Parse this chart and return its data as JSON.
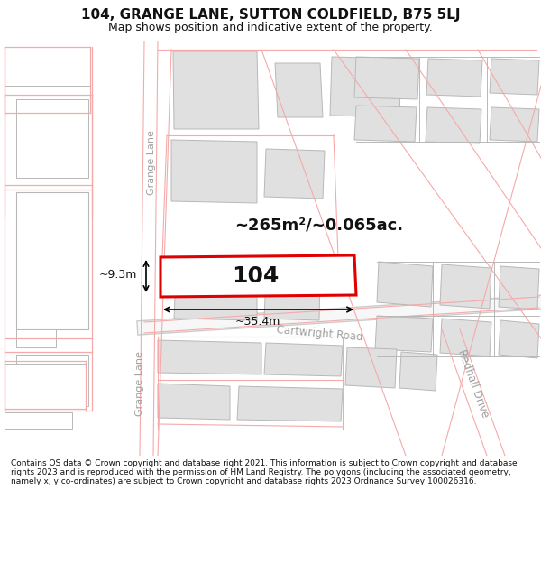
{
  "title_line1": "104, GRANGE LANE, SUTTON COLDFIELD, B75 5LJ",
  "title_line2": "Map shows position and indicative extent of the property.",
  "footer_text": "Contains OS data © Crown copyright and database right 2021. This information is subject to Crown copyright and database rights 2023 and is reproduced with the permission of HM Land Registry. The polygons (including the associated geometry, namely x, y co-ordinates) are subject to Crown copyright and database rights 2023 Ordnance Survey 100026316.",
  "map_bg": "#f7f7f7",
  "area_label": "~265m²/~0.065ac.",
  "width_label": "~35.4m",
  "height_label": "~9.3m",
  "plot_number": "104",
  "street_name_upper": "Grange Lane",
  "street_name_lower": "Grange Lane",
  "cartwright_road": "Cartwright Road",
  "redhall_drive": "Redhall Drive",
  "pink": "#f5aaaa",
  "gray_fill": "#e0e0e0",
  "gray_edge": "#b8b8b8",
  "white_fill": "#ffffff",
  "red_outline": "#e00000",
  "road_text": "#a0a0a0",
  "title_font": 11,
  "subtitle_font": 9
}
